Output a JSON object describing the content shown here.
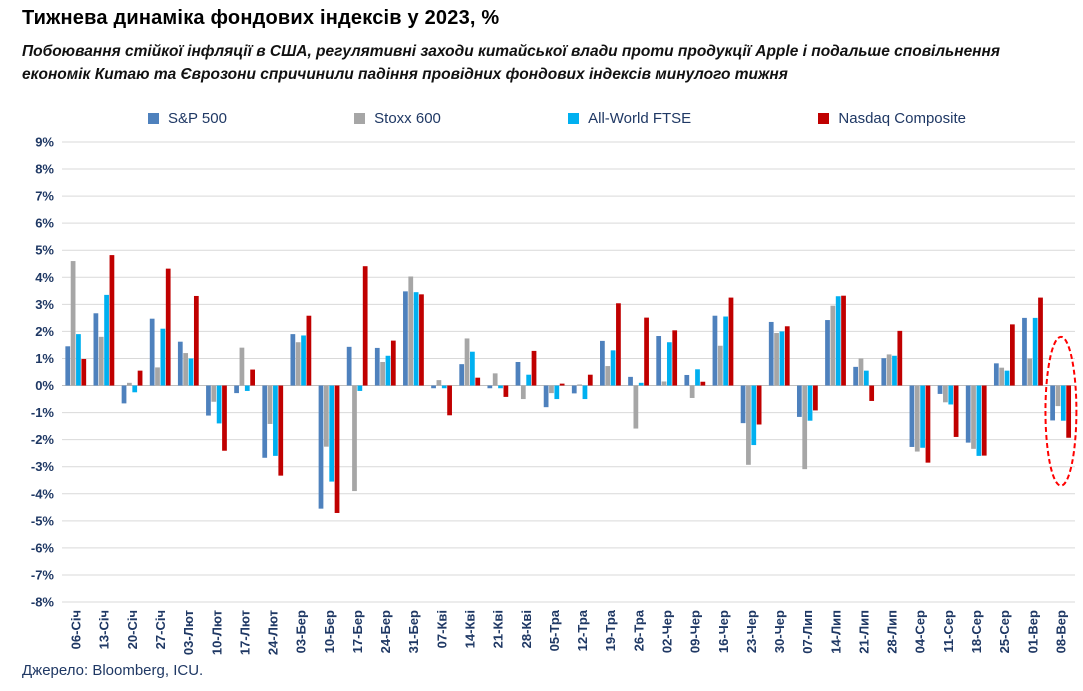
{
  "header": {
    "title": "Тижнева динаміка фондових індексів у 2023, %",
    "subtitle": "Побоювання стійкої інфляції в США, регулятивні заходи китайської влади проти продукції Apple і подальше сповільнення економік Китаю та Єврозони спричинили падіння провідних фондових індексів минулого тижня"
  },
  "footer": {
    "source": "Джерело: Bloomberg, ICU."
  },
  "chart_data": {
    "type": "bar",
    "title": "Тижнева динаміка фондових індексів у 2023, %",
    "ylim": [
      -8,
      9
    ],
    "ytick_step": 1,
    "ytick_suffix": "%",
    "grid": true,
    "legend_position": "top",
    "axis_label_color": "#1F3864",
    "grid_color": "#D9D9D9",
    "zero_line_color": "#BFBFBF",
    "categories": [
      "06-Січ",
      "13-Січ",
      "20-Січ",
      "27-Січ",
      "03-Лют",
      "10-Лют",
      "17-Лют",
      "24-Лют",
      "03-Бер",
      "10-Бер",
      "17-Бер",
      "24-Бер",
      "31-Бер",
      "07-Кві",
      "14-Кві",
      "21-Кві",
      "28-Кві",
      "05-Тра",
      "12-Тра",
      "19-Тра",
      "26-Тра",
      "02-Чер",
      "09-Чер",
      "16-Чер",
      "23-Чер",
      "30-Чер",
      "07-Лип",
      "14-Лип",
      "21-Лип",
      "28-Лип",
      "04-Сер",
      "11-Сер",
      "18-Сер",
      "25-Сер",
      "01-Вер",
      "08-Вер"
    ],
    "series": [
      {
        "name": "S&P 500",
        "color": "#4E81BD",
        "values": [
          1.45,
          2.67,
          -0.66,
          2.47,
          1.62,
          -1.11,
          -0.28,
          -2.67,
          1.9,
          -4.55,
          1.43,
          1.39,
          3.48,
          -0.1,
          0.79,
          -0.1,
          0.87,
          -0.8,
          -0.29,
          1.65,
          0.32,
          1.83,
          0.39,
          2.58,
          -1.39,
          2.35,
          -1.16,
          2.42,
          0.69,
          1.01,
          -2.27,
          -0.31,
          -2.11,
          0.82,
          2.5,
          -1.29
        ]
      },
      {
        "name": "Stoxx 600",
        "color": "#A6A6A6",
        "values": [
          4.6,
          1.8,
          0.1,
          0.67,
          1.2,
          -0.6,
          1.4,
          -1.42,
          1.6,
          -2.26,
          -3.9,
          0.87,
          4.03,
          0.2,
          1.74,
          0.45,
          -0.5,
          -0.28,
          0.04,
          0.72,
          -1.59,
          0.15,
          -0.46,
          1.47,
          -2.93,
          1.94,
          -3.09,
          2.95,
          1.0,
          1.15,
          -2.44,
          -0.62,
          -2.34,
          0.66,
          1.0,
          -0.76
        ]
      },
      {
        "name": "All-World FTSE",
        "color": "#00B0F0",
        "values": [
          1.9,
          3.35,
          -0.25,
          2.1,
          1.0,
          -1.4,
          -0.2,
          -2.6,
          1.85,
          -3.55,
          -0.2,
          1.1,
          3.45,
          -0.1,
          1.25,
          -0.1,
          0.4,
          -0.5,
          -0.5,
          1.3,
          0.1,
          1.6,
          0.6,
          2.55,
          -2.2,
          2.0,
          -1.3,
          3.3,
          0.55,
          1.1,
          -2.3,
          -0.7,
          -2.6,
          0.55,
          2.5,
          -1.3
        ]
      },
      {
        "name": "Nasdaq Composite",
        "color": "#C00000",
        "values": [
          0.98,
          4.82,
          0.55,
          4.32,
          3.31,
          -2.41,
          0.59,
          -3.33,
          2.58,
          -4.71,
          4.41,
          1.66,
          3.37,
          -1.1,
          0.29,
          -0.42,
          1.28,
          0.07,
          0.4,
          3.04,
          2.51,
          2.04,
          0.14,
          3.25,
          -1.44,
          2.19,
          -0.92,
          3.32,
          -0.57,
          2.02,
          -2.85,
          -1.9,
          -2.59,
          2.26,
          3.25,
          -1.93
        ]
      }
    ],
    "highlight": {
      "category": "08-Вер",
      "shape": "dashed-ellipse",
      "color": "#FF0000",
      "y_top": 1.8,
      "y_bottom": -3.7
    }
  }
}
